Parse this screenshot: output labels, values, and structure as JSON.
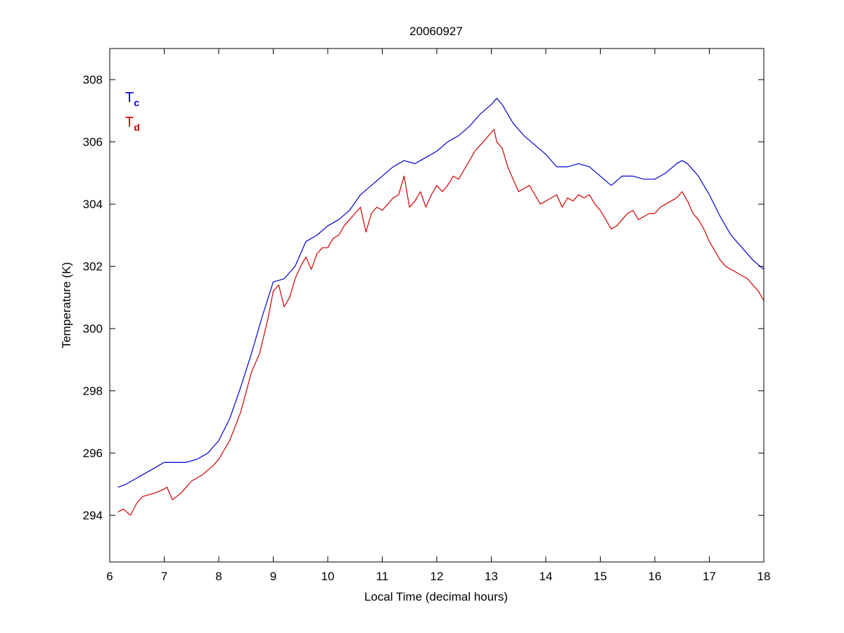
{
  "chart_data": {
    "type": "line",
    "title": "20060927",
    "xlabel": "Local Time (decimal hours)",
    "ylabel": "Temperature (K)",
    "xlim": [
      6,
      18
    ],
    "ylim": [
      292.5,
      309
    ],
    "x_ticks": [
      6,
      7,
      8,
      9,
      10,
      11,
      12,
      13,
      14,
      15,
      16,
      17,
      18
    ],
    "y_ticks": [
      294,
      296,
      298,
      300,
      302,
      304,
      306,
      308
    ],
    "x_tick_labels": [
      "6",
      "7",
      "8",
      "9",
      "10",
      "11",
      "12",
      "13",
      "14",
      "15",
      "16",
      "17",
      "18"
    ],
    "y_tick_labels": [
      "294",
      "296",
      "298",
      "300",
      "302",
      "304",
      "306",
      "308"
    ],
    "grid": false,
    "legend_position": "top-left",
    "series": [
      {
        "legend_main": "T",
        "legend_sub": "c",
        "color": "#0000cc",
        "x": [
          6.15,
          6.3,
          6.5,
          6.7,
          6.9,
          7.0,
          7.2,
          7.4,
          7.6,
          7.8,
          8.0,
          8.2,
          8.4,
          8.6,
          8.8,
          9.0,
          9.2,
          9.4,
          9.6,
          9.8,
          10.0,
          10.2,
          10.4,
          10.6,
          10.8,
          11.0,
          11.2,
          11.4,
          11.6,
          11.8,
          12.0,
          12.2,
          12.4,
          12.6,
          12.8,
          13.0,
          13.1,
          13.2,
          13.4,
          13.6,
          13.8,
          14.0,
          14.2,
          14.4,
          14.6,
          14.8,
          15.0,
          15.2,
          15.4,
          15.6,
          15.8,
          16.0,
          16.2,
          16.4,
          16.5,
          16.6,
          16.8,
          17.0,
          17.2,
          17.4,
          17.6,
          17.8,
          18.0
        ],
        "y": [
          294.9,
          295.0,
          295.2,
          295.4,
          295.6,
          295.7,
          295.7,
          295.7,
          295.8,
          296.0,
          296.4,
          297.1,
          298.1,
          299.2,
          300.4,
          301.5,
          301.6,
          302.0,
          302.8,
          303.0,
          303.3,
          303.5,
          303.8,
          304.3,
          304.6,
          304.9,
          305.2,
          305.4,
          305.3,
          305.5,
          305.7,
          306.0,
          306.2,
          306.5,
          306.9,
          307.2,
          307.4,
          307.2,
          306.6,
          306.2,
          305.9,
          305.6,
          305.2,
          305.2,
          305.3,
          305.2,
          304.9,
          304.6,
          304.9,
          304.9,
          304.8,
          304.8,
          305.0,
          305.3,
          305.4,
          305.3,
          304.9,
          304.3,
          303.6,
          303.0,
          302.6,
          302.2,
          301.9
        ]
      },
      {
        "legend_main": "T",
        "legend_sub": "d",
        "color": "#cc0000",
        "x": [
          6.15,
          6.25,
          6.38,
          6.5,
          6.6,
          6.8,
          6.95,
          7.05,
          7.15,
          7.3,
          7.5,
          7.7,
          7.9,
          8.0,
          8.2,
          8.4,
          8.6,
          8.75,
          8.9,
          9.0,
          9.1,
          9.2,
          9.3,
          9.4,
          9.5,
          9.6,
          9.7,
          9.8,
          9.9,
          10.0,
          10.1,
          10.2,
          10.3,
          10.4,
          10.5,
          10.6,
          10.7,
          10.8,
          10.9,
          11.0,
          11.1,
          11.2,
          11.3,
          11.4,
          11.5,
          11.6,
          11.7,
          11.8,
          11.9,
          12.0,
          12.1,
          12.2,
          12.3,
          12.4,
          12.5,
          12.6,
          12.7,
          12.8,
          12.9,
          13.0,
          13.05,
          13.1,
          13.2,
          13.3,
          13.4,
          13.5,
          13.6,
          13.7,
          13.8,
          13.9,
          14.0,
          14.1,
          14.2,
          14.3,
          14.4,
          14.5,
          14.6,
          14.7,
          14.8,
          14.9,
          15.0,
          15.1,
          15.2,
          15.3,
          15.4,
          15.5,
          15.6,
          15.7,
          15.8,
          15.9,
          16.0,
          16.1,
          16.2,
          16.3,
          16.4,
          16.5,
          16.6,
          16.7,
          16.8,
          16.9,
          17.0,
          17.1,
          17.2,
          17.3,
          17.4,
          17.5,
          17.6,
          17.7,
          17.8,
          17.9,
          18.0
        ],
        "y": [
          294.1,
          294.2,
          294.0,
          294.4,
          294.6,
          294.7,
          294.8,
          294.9,
          294.5,
          294.7,
          295.1,
          295.3,
          295.6,
          295.8,
          296.4,
          297.3,
          298.6,
          299.2,
          300.3,
          301.2,
          301.4,
          300.7,
          301.0,
          301.6,
          302.0,
          302.3,
          301.9,
          302.4,
          302.6,
          302.6,
          302.9,
          303.0,
          303.3,
          303.5,
          303.7,
          303.9,
          303.1,
          303.7,
          303.9,
          303.8,
          304.0,
          304.2,
          304.3,
          304.9,
          303.9,
          304.1,
          304.4,
          303.9,
          304.3,
          304.6,
          304.4,
          304.6,
          304.9,
          304.8,
          305.1,
          305.4,
          305.7,
          305.9,
          306.1,
          306.3,
          306.4,
          306.0,
          305.8,
          305.2,
          304.8,
          304.4,
          304.5,
          304.6,
          304.3,
          304.0,
          304.1,
          304.2,
          304.3,
          303.9,
          304.2,
          304.1,
          304.3,
          304.2,
          304.3,
          304.0,
          303.8,
          303.5,
          303.2,
          303.3,
          303.5,
          303.7,
          303.8,
          303.5,
          303.6,
          303.7,
          303.7,
          303.9,
          304.0,
          304.1,
          304.2,
          304.4,
          304.1,
          303.7,
          303.5,
          303.2,
          302.8,
          302.5,
          302.2,
          302.0,
          301.9,
          301.8,
          301.7,
          301.6,
          301.4,
          301.2,
          300.9
        ]
      }
    ]
  }
}
